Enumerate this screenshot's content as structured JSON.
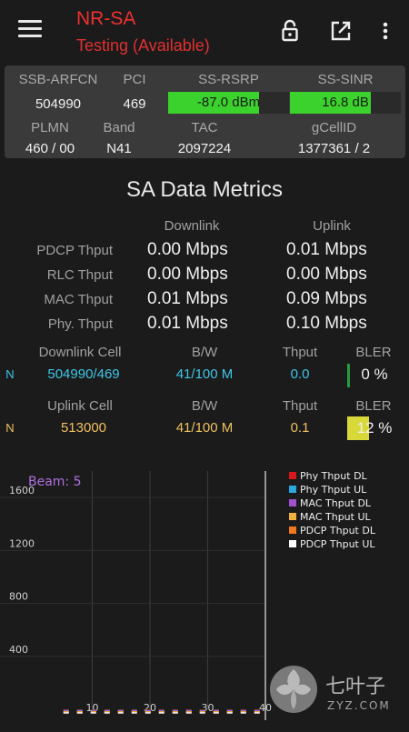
{
  "app": {
    "title": "NR-SA",
    "status": "Testing (Available)"
  },
  "toolbar_icons": [
    "menu-icon",
    "lock-icon",
    "export-icon",
    "more-vert-icon"
  ],
  "cell_info": {
    "ssb_arfcn_label": "SSB-ARFCN",
    "ssb_arfcn": "504990",
    "pci_label": "PCI",
    "pci": "469",
    "rsrp_label": "SS-RSRP",
    "rsrp": "-87.0 dBm",
    "rsrp_level": 0.75,
    "sinr_label": "SS-SINR",
    "sinr": "16.8 dB",
    "sinr_level": 0.73,
    "plmn_label": "PLMN",
    "plmn": "460 / 00",
    "band_label": "Band",
    "band": "N41",
    "tac_label": "TAC",
    "tac": "2097224",
    "gcellid_label": "gCellID",
    "gcellid": "1377361 / 2",
    "bar_color": "#3bd22e"
  },
  "metrics": {
    "title": "SA Data Metrics",
    "downlink_header": "Downlink",
    "uplink_header": "Uplink",
    "rows": [
      {
        "label": "PDCP Thput",
        "dl": "0.00 Mbps",
        "ul": "0.01 Mbps"
      },
      {
        "label": "RLC Thput",
        "dl": "0.00 Mbps",
        "ul": "0.00 Mbps"
      },
      {
        "label": "MAC Thput",
        "dl": "0.01 Mbps",
        "ul": "0.09 Mbps"
      },
      {
        "label": "Phy. Thput",
        "dl": "0.01 Mbps",
        "ul": "0.10 Mbps"
      }
    ]
  },
  "dl_cell": {
    "header_cell": "Downlink Cell",
    "header_bw": "B/W",
    "header_thput": "Thput",
    "header_bler": "BLER",
    "tag": "N",
    "cell": "504990/469",
    "bw": "41/100 M",
    "thput": "0.0",
    "bler": "0 %",
    "bler_level": 0.0,
    "color": "#3ec6e8",
    "bler_color": "#2a9a3a"
  },
  "ul_cell": {
    "header_cell": "Uplink Cell",
    "header_bw": "B/W",
    "header_thput": "Thput",
    "header_bler": "BLER",
    "tag": "N",
    "cell": "513000",
    "bw": "41/100 M",
    "thput": "0.1",
    "bler": "12 %",
    "bler_level": 0.12,
    "color": "#f0c060",
    "bler_color": "#d8d838"
  },
  "chart_data": {
    "type": "line",
    "annotation": "Beam: 5",
    "x_ticks": [
      "10",
      "20",
      "30",
      "40"
    ],
    "y_ticks": [
      "400",
      "800",
      "1200",
      "1600"
    ],
    "xlim": [
      0,
      40
    ],
    "ylim": [
      0,
      1800
    ],
    "grid": true,
    "legend_position": "top-right",
    "series": [
      {
        "name": "Phy Thput DL",
        "color": "#d81818",
        "values": [
          0,
          0,
          0,
          0,
          0,
          0,
          0,
          0
        ]
      },
      {
        "name": "Phy Thput UL",
        "color": "#2aa8e0",
        "values": [
          0,
          0,
          0,
          0,
          0,
          0,
          0,
          0
        ]
      },
      {
        "name": "MAC Thput DL",
        "color": "#a050d0",
        "values": [
          0,
          0,
          0,
          0,
          0,
          0,
          0,
          0
        ]
      },
      {
        "name": "MAC Thput UL",
        "color": "#f0b040",
        "values": [
          0,
          0,
          0,
          0,
          0,
          0,
          0,
          0
        ]
      },
      {
        "name": "PDCP Thput DL",
        "color": "#f07820",
        "values": [
          0,
          0,
          0,
          0,
          0,
          0,
          0,
          0
        ]
      },
      {
        "name": "PDCP Thput UL",
        "color": "#ffffff",
        "values": [
          0,
          0,
          0,
          0,
          0,
          0,
          0,
          0
        ]
      }
    ],
    "x": [
      5,
      10,
      15,
      20,
      25,
      30,
      35,
      40
    ]
  },
  "watermark": {
    "brand": "七叶子",
    "domain": "ZYZ.COM"
  }
}
